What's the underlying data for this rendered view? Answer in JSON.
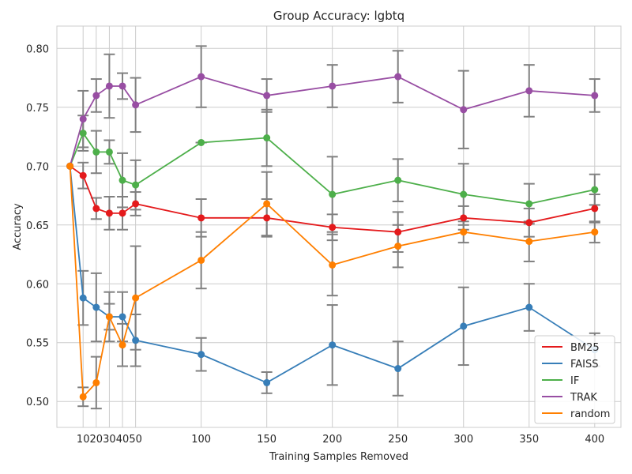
{
  "chart_data": {
    "type": "line",
    "title": "Group Accuracy: lgbtq",
    "xlabel": "Training Samples Removed",
    "ylabel": "Accuracy",
    "x_ticks": [
      10,
      20,
      30,
      40,
      50,
      100,
      150,
      200,
      250,
      300,
      350,
      400
    ],
    "y_ticks": [
      0.5,
      0.55,
      0.6,
      0.65,
      0.7,
      0.75,
      0.8
    ],
    "y_tick_labels": [
      "0.50",
      "0.55",
      "0.60",
      "0.65",
      "0.70",
      "0.75",
      "0.80"
    ],
    "xlim": [
      -10,
      420
    ],
    "ylim": [
      0.478,
      0.819
    ],
    "grid": true,
    "legend_position": "lower-right",
    "error_bar_color": "#808080",
    "x": [
      0,
      10,
      20,
      30,
      40,
      50,
      100,
      150,
      200,
      250,
      300,
      350,
      400
    ],
    "series": [
      {
        "name": "BM25",
        "color": "#e41a1c",
        "values": [
          0.7,
          0.692,
          0.664,
          0.66,
          0.66,
          0.668,
          0.656,
          0.656,
          0.648,
          0.644,
          0.656,
          0.652,
          0.664
        ],
        "err_low": [
          null,
          0.681,
          0.655,
          0.646,
          0.646,
          0.658,
          0.64,
          0.64,
          0.637,
          0.627,
          0.646,
          0.64,
          0.652
        ],
        "err_high": [
          null,
          0.703,
          0.673,
          0.674,
          0.674,
          0.678,
          0.672,
          0.672,
          0.659,
          0.661,
          0.666,
          0.664,
          0.676
        ]
      },
      {
        "name": "FAISS",
        "color": "#377eb8",
        "values": [
          0.7,
          0.588,
          0.58,
          0.572,
          0.572,
          0.552,
          0.54,
          0.516,
          0.548,
          0.528,
          0.564,
          0.58,
          0.544
        ],
        "err_low": [
          null,
          0.565,
          0.551,
          0.551,
          0.551,
          0.53,
          0.526,
          0.507,
          0.514,
          0.505,
          0.531,
          0.56,
          0.53
        ],
        "err_high": [
          null,
          0.611,
          0.609,
          0.593,
          0.593,
          0.574,
          0.554,
          0.525,
          0.582,
          0.551,
          0.597,
          0.6,
          0.558
        ]
      },
      {
        "name": "IF",
        "color": "#4daf4a",
        "values": [
          0.7,
          0.728,
          0.712,
          0.712,
          0.688,
          0.684,
          0.72,
          0.724,
          0.676,
          0.688,
          0.676,
          0.668,
          0.68
        ],
        "err_low": [
          null,
          0.713,
          0.694,
          0.702,
          0.665,
          0.663,
          0.72,
          0.7,
          0.644,
          0.67,
          0.65,
          0.651,
          0.667
        ],
        "err_high": [
          null,
          0.743,
          0.73,
          0.722,
          0.711,
          0.705,
          0.72,
          0.748,
          0.708,
          0.706,
          0.702,
          0.685,
          0.693
        ]
      },
      {
        "name": "TRAK",
        "color": "#984ea3",
        "values": [
          0.7,
          0.74,
          0.76,
          0.768,
          0.768,
          0.752,
          0.776,
          0.76,
          0.768,
          0.776,
          0.748,
          0.764,
          0.76
        ],
        "err_low": [
          null,
          0.716,
          0.746,
          0.741,
          0.757,
          0.729,
          0.75,
          0.746,
          0.75,
          0.754,
          0.715,
          0.742,
          0.746
        ],
        "err_high": [
          null,
          0.764,
          0.774,
          0.795,
          0.779,
          0.775,
          0.802,
          0.774,
          0.786,
          0.798,
          0.781,
          0.786,
          0.774
        ]
      },
      {
        "name": "random",
        "color": "#ff7f00",
        "values": [
          0.7,
          0.504,
          0.516,
          0.572,
          0.548,
          0.588,
          0.62,
          0.668,
          0.616,
          0.632,
          0.644,
          0.636,
          0.644
        ],
        "err_low": [
          null,
          0.496,
          0.494,
          0.561,
          0.53,
          0.544,
          0.596,
          0.641,
          0.59,
          0.614,
          0.635,
          0.619,
          0.635
        ],
        "err_high": [
          null,
          0.512,
          0.538,
          0.583,
          0.566,
          0.632,
          0.644,
          0.695,
          0.642,
          0.65,
          0.653,
          0.653,
          0.653
        ]
      }
    ]
  }
}
